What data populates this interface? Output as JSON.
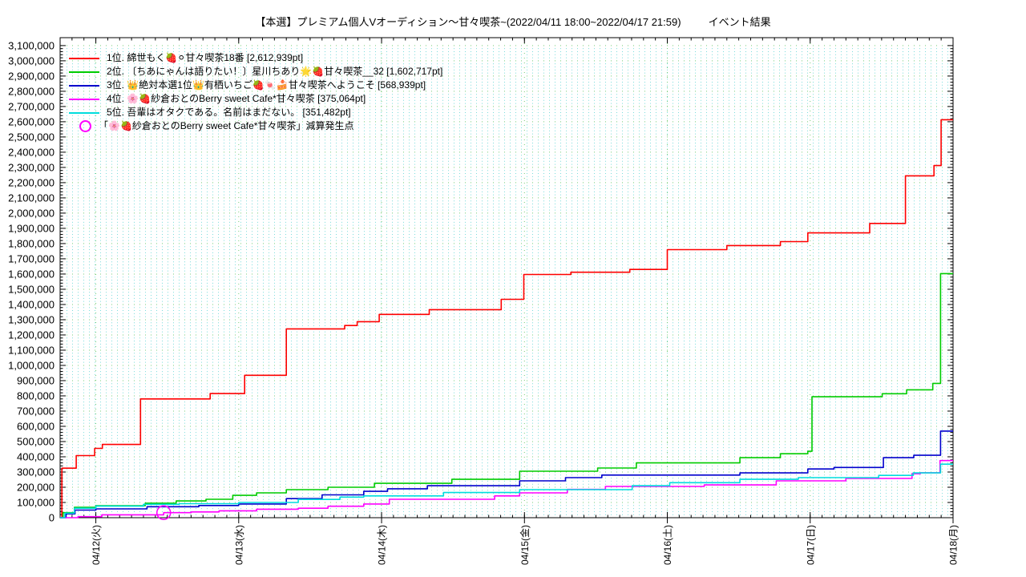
{
  "title": {
    "main": "【本選】プレミアム個人Vオーディション〜甘々喫茶~(2022/04/11 18:00~2022/04/17 21:59)",
    "suffix": "イベント結果"
  },
  "chart_data": {
    "type": "line",
    "line_style": "step-after",
    "title": "【本選】プレミアム個人Vオーディション〜甘々喫茶~(2022/04/11 18:00~2022/04/17 21:59) イベント結果",
    "x_unit": "hours since 2022/04/11 18:00",
    "x_range": [
      0,
      150
    ],
    "y_range": [
      0,
      3152000
    ],
    "y_major_step": 100000,
    "y_minor_step": 20000,
    "y_max_labeled": 3100000,
    "x_minor_step_hours": 2,
    "grid": {
      "major_color": "#74cc74",
      "minor_color": "#7adcdc",
      "vertical_day_color": "#74cc74"
    },
    "x_ticks": [
      {
        "t": 6,
        "label": "04/12(火)"
      },
      {
        "t": 30,
        "label": "04/13(水)"
      },
      {
        "t": 54,
        "label": "04/14(木)"
      },
      {
        "t": 78,
        "label": "04/15(金)"
      },
      {
        "t": 102,
        "label": "04/16(土)"
      },
      {
        "t": 126,
        "label": "04/17(日)"
      },
      {
        "t": 150,
        "label": "04/18(月)"
      }
    ],
    "series": [
      {
        "name": "1位. 綿世もく🍓⚪甘々喫茶18番 [2,612,939pt]",
        "color": "#ff0000",
        "final_pt": 2612939,
        "points": [
          [
            0,
            0
          ],
          [
            0.3,
            325000
          ],
          [
            2.7,
            408000
          ],
          [
            5.8,
            455000
          ],
          [
            7.1,
            481000
          ],
          [
            13.5,
            780000
          ],
          [
            25.2,
            815000
          ],
          [
            31,
            935000
          ],
          [
            38,
            1240000
          ],
          [
            47.8,
            1262000
          ],
          [
            49.9,
            1287000
          ],
          [
            53.6,
            1335000
          ],
          [
            62,
            1366000
          ],
          [
            74.1,
            1434000
          ],
          [
            77.9,
            1597000
          ],
          [
            85.8,
            1612000
          ],
          [
            95.7,
            1630000
          ],
          [
            102,
            1760000
          ],
          [
            112,
            1787000
          ],
          [
            121,
            1813000
          ],
          [
            125.6,
            1870000
          ],
          [
            136,
            1932000
          ],
          [
            142,
            2245000
          ],
          [
            146.8,
            2312000
          ],
          [
            148,
            2612939
          ],
          [
            150,
            2612939
          ]
        ]
      },
      {
        "name": "2位. 〔ちあにゃんは語りたい！〕星川ちあり🌟🍓甘々喫茶__32 [1,602,717pt]",
        "color": "#00cc00",
        "final_pt": 1602717,
        "points": [
          [
            0,
            0
          ],
          [
            0.5,
            33000
          ],
          [
            2.4,
            68000
          ],
          [
            6,
            79000
          ],
          [
            14.3,
            95000
          ],
          [
            19.5,
            110000
          ],
          [
            24.5,
            121000
          ],
          [
            29,
            147000
          ],
          [
            33,
            163000
          ],
          [
            38,
            184000
          ],
          [
            45,
            200000
          ],
          [
            52.8,
            226000
          ],
          [
            65.8,
            252000
          ],
          [
            77.2,
            305000
          ],
          [
            90.3,
            326000
          ],
          [
            96.8,
            360000
          ],
          [
            114.2,
            394000
          ],
          [
            121,
            420000
          ],
          [
            125.6,
            436000
          ],
          [
            126.3,
            794000
          ],
          [
            138.1,
            814000
          ],
          [
            142.2,
            840000
          ],
          [
            146.6,
            882000
          ],
          [
            147.9,
            1602717
          ],
          [
            150,
            1602717
          ]
        ]
      },
      {
        "name": "3位. 👑絶対本選1位👑有栖いちご🍓🍬🍰甘々喫茶へようこそ [568,939pt]",
        "color": "#0000cd",
        "final_pt": 568939,
        "points": [
          [
            0,
            0
          ],
          [
            1,
            25000
          ],
          [
            2.5,
            50000
          ],
          [
            6,
            58000
          ],
          [
            14.6,
            72000
          ],
          [
            23.3,
            80000
          ],
          [
            30,
            90000
          ],
          [
            38,
            125000
          ],
          [
            44,
            150000
          ],
          [
            51,
            173000
          ],
          [
            55,
            190000
          ],
          [
            61.7,
            210000
          ],
          [
            77.2,
            242000
          ],
          [
            84.9,
            263000
          ],
          [
            91,
            280000
          ],
          [
            114.2,
            294000
          ],
          [
            125.6,
            320000
          ],
          [
            130,
            330000
          ],
          [
            138.3,
            394000
          ],
          [
            143.4,
            410000
          ],
          [
            147.9,
            568939
          ],
          [
            150,
            568939
          ]
        ]
      },
      {
        "name": "4位. 🌸🍓紗倉おとのBerry sweet Cafe*甘々喫茶 [375,064pt]",
        "color": "#ff00ff",
        "final_pt": 375064,
        "points": [
          [
            0,
            0
          ],
          [
            3,
            7000
          ],
          [
            7,
            19000
          ],
          [
            17.4,
            33000
          ],
          [
            22,
            38000
          ],
          [
            26.7,
            45000
          ],
          [
            33,
            56000
          ],
          [
            40,
            62000
          ],
          [
            45,
            75000
          ],
          [
            51,
            90000
          ],
          [
            55.3,
            121000
          ],
          [
            73,
            143000
          ],
          [
            77.2,
            163000
          ],
          [
            85.2,
            186000
          ],
          [
            91.6,
            205000
          ],
          [
            108.2,
            215000
          ],
          [
            120.3,
            242000
          ],
          [
            132,
            258000
          ],
          [
            143.1,
            289000
          ],
          [
            144.5,
            295000
          ],
          [
            147.8,
            375064
          ],
          [
            150,
            375064
          ]
        ]
      },
      {
        "name": "5位. 吾輩はオタクである。名前はまだない。 [351,482pt]",
        "color": "#00dddd",
        "final_pt": 351482,
        "points": [
          [
            0,
            0
          ],
          [
            0.8,
            30000
          ],
          [
            2.4,
            62000
          ],
          [
            6,
            76000
          ],
          [
            14,
            88000
          ],
          [
            20,
            92000
          ],
          [
            30,
            100000
          ],
          [
            40,
            120000
          ],
          [
            47,
            135000
          ],
          [
            51,
            143000
          ],
          [
            64.4,
            165000
          ],
          [
            77.2,
            184000
          ],
          [
            96.1,
            210000
          ],
          [
            102.4,
            230000
          ],
          [
            114.2,
            252000
          ],
          [
            124,
            263000
          ],
          [
            137.5,
            278000
          ],
          [
            143.3,
            294000
          ],
          [
            147.9,
            351482
          ],
          [
            150,
            351482
          ]
        ]
      }
    ],
    "deduction_marker": {
      "label": "「🌸🍓紗倉おとのBerry sweet Cafe*甘々喫茶」減算発生点",
      "color": "#ff00ff",
      "t": 17.4,
      "value": 33000
    },
    "legend_position": "top-left-inside"
  }
}
